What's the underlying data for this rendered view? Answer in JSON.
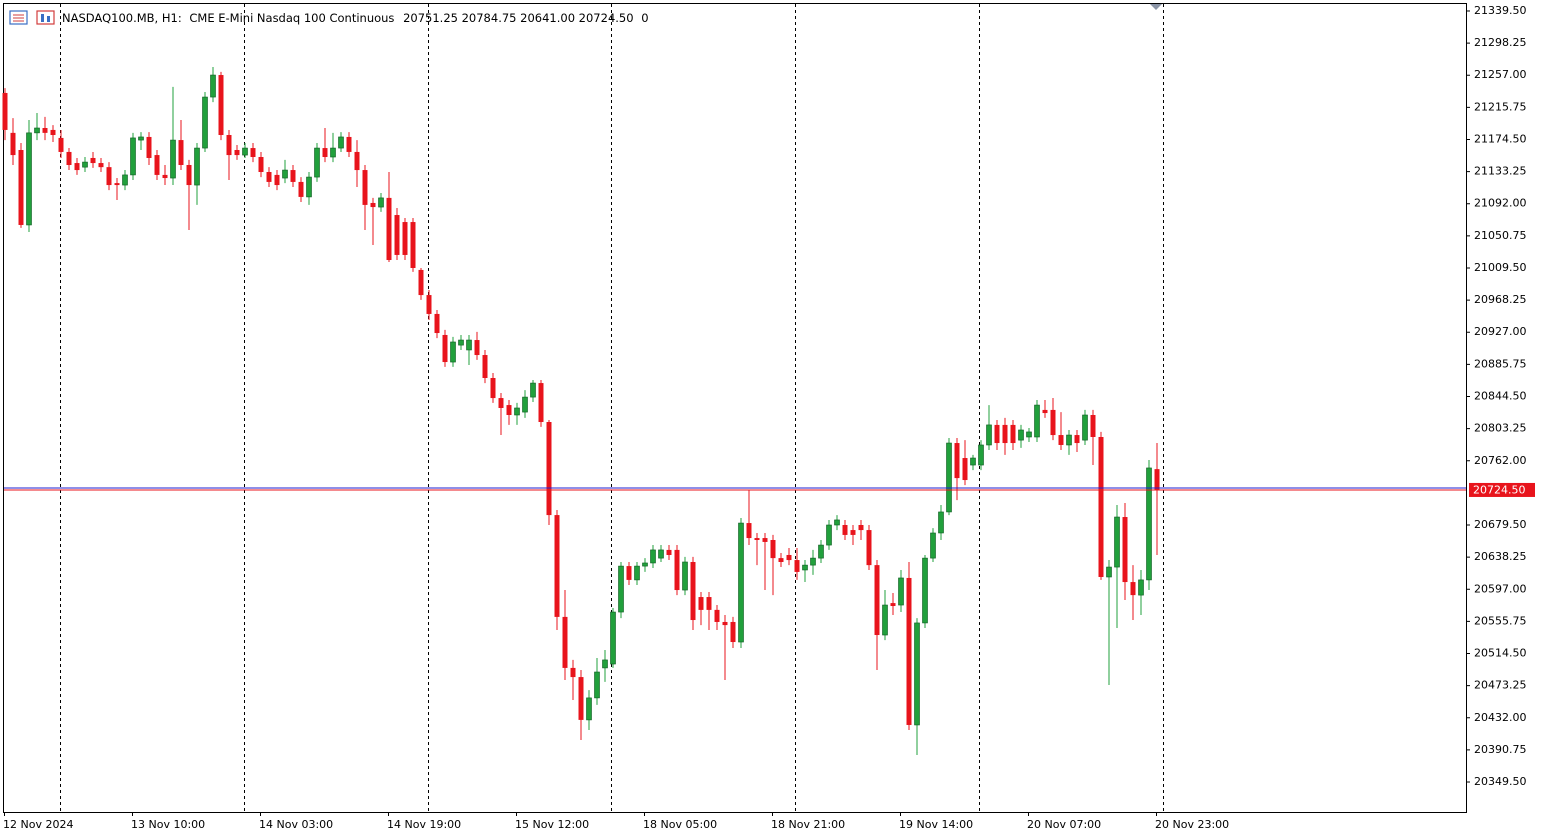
{
  "chart_data": {
    "type": "candlestick",
    "header": {
      "symbol": "NASDAQ100.MB, H1:",
      "description": "CME E-Mini Nasdaq 100 Continuous",
      "prices": [
        "20751.25",
        "20784.75",
        "20641.00",
        "20724.50"
      ],
      "volume": 0
    },
    "categories": [
      "12 Nov 2024",
      null,
      null,
      null,
      null,
      null,
      null,
      null,
      null,
      null,
      null,
      null,
      null,
      null,
      null,
      null,
      "13 Nov 10:00",
      null,
      null,
      null,
      null,
      null,
      null,
      null,
      null,
      null,
      null,
      null,
      null,
      null,
      null,
      null,
      "14 Nov 03:00",
      null,
      null,
      null,
      null,
      null,
      null,
      null,
      null,
      null,
      null,
      null,
      null,
      null,
      null,
      null,
      "14 Nov 19:00",
      null,
      null,
      null,
      null,
      null,
      null,
      null,
      null,
      null,
      null,
      null,
      null,
      null,
      null,
      null,
      "15 Nov 12:00",
      null,
      null,
      null,
      null,
      null,
      null,
      null,
      null,
      null,
      null,
      null,
      null,
      null,
      null,
      null,
      "18 Nov 05:00",
      null,
      null,
      null,
      null,
      null,
      null,
      null,
      null,
      null,
      null,
      null,
      null,
      null,
      null,
      null,
      "18 Nov 21:00",
      null,
      null,
      null,
      null,
      null,
      null,
      null,
      null,
      null,
      null,
      null,
      null,
      null,
      null,
      null,
      "19 Nov 14:00",
      null,
      null,
      null,
      null,
      null,
      null,
      null,
      null,
      null,
      null,
      null,
      null,
      null,
      null,
      null,
      "20 Nov 07:00",
      null,
      null,
      null,
      null,
      null,
      null,
      null,
      null,
      null,
      null,
      null,
      null,
      null,
      null,
      null,
      "20 Nov 23:00"
    ],
    "open": [
      21234.25,
      21183,
      21161,
      21064.75,
      21183,
      21189.25,
      21186.75,
      21176.5,
      21158.5,
      21144.25,
      21139,
      21150.75,
      21144.25,
      21139,
      21118.5,
      21116,
      21129,
      21173.75,
      21177.75,
      21154.5,
      21129,
      21125,
      21173.75,
      21141.75,
      21116,
      21163.5,
      21229,
      21257.25,
      21180.25,
      21161,
      21154.5,
      21163.5,
      21152,
      21132.75,
      21129,
      21125,
      21135.25,
      21120,
      21100.75,
      21126.25,
      21163.5,
      21152,
      21163.5,
      21177.75,
      21158.5,
      21135.25,
      21093,
      21087.75,
      21099.5,
      21077.5,
      21068.5,
      21068.5,
      21007,
      20974.75,
      20950.5,
      20923.5,
      20888.75,
      20910.5,
      20904.25,
      20917,
      20897.75,
      20868.25,
      20842.5,
      20833.5,
      20820.75,
      20824.5,
      20843.75,
      20861.75,
      20811.75,
      20692.25,
      20561.5,
      20496,
      20484.25,
      20429.25,
      20457.5,
      20496,
      20501,
      20567.75,
      20626.75,
      20609,
      20626.75,
      20630.75,
      20637,
      20647.5,
      20647.5,
      20596,
      20632,
      20587,
      20587,
      20570.5,
      20555,
      20555,
      20529.25,
      20682,
      20662.75,
      20662.75,
      20660.25,
      20637,
      20641,
      20634.5,
      20621.75,
      20628,
      20637,
      20653.75,
      20679.5,
      20679.5,
      20673,
      20679.5,
      20673,
      20628,
      20538.25,
      20579.25,
      20576.75,
      20611.5,
      20422.75,
      20553.75,
      20637,
      20669.25,
      20696.25,
      20784.75,
      20765.5,
      20756.5,
      20756.5,
      20782.25,
      20808,
      20808,
      20808,
      20788.5,
      20792.5,
      20792.5,
      20827.25,
      20827.25,
      20795,
      20782.25,
      20795,
      20788.5,
      20820.75,
      20792.5,
      20612.75,
      20625.5,
      20689.75,
      20606.25,
      20589.5,
      20609,
      20751.25
    ],
    "high": [
      21240.5,
      21202,
      21170,
      21199.5,
      21208.5,
      21203.5,
      21193,
      21186.75,
      21163.5,
      21150.75,
      21152,
      21158.5,
      21150.75,
      21145.5,
      21125,
      21135.25,
      21183,
      21184,
      21184,
      21161,
      21141.75,
      21242,
      21199.5,
      21148.25,
      21170,
      21235.5,
      21267.5,
      21261.25,
      21186.75,
      21167.5,
      21170,
      21170,
      21158.5,
      21139,
      21135.25,
      21148.25,
      21141.75,
      21126.25,
      21132.75,
      21170,
      21189.25,
      21183,
      21184,
      21184,
      21173.75,
      21141.75,
      21099.5,
      21105.75,
      21132.75,
      21086.5,
      21073.75,
      21073.75,
      21009.5,
      20981.25,
      20955.5,
      20930,
      20921,
      20923.5,
      20923.5,
      20927.5,
      20904.25,
      20874.75,
      20849,
      20840,
      20836.25,
      20852.75,
      20865.75,
      20865.75,
      20814.25,
      20698.75,
      20596,
      20506.25,
      20493.25,
      20467.5,
      20508.75,
      20519,
      20573,
      20632,
      20632,
      20632,
      20637,
      20653.75,
      20653.75,
      20653.75,
      20653.75,
      20638.5,
      20638.5,
      20593.5,
      20593.5,
      20576.75,
      20564,
      20561.5,
      20688.5,
      20724.5,
      20669.25,
      20669.25,
      20666.75,
      20643.5,
      20650,
      20650,
      20634.5,
      20647.5,
      20660.25,
      20686,
      20692.25,
      20686,
      20679.5,
      20686,
      20679.5,
      20634.5,
      20596,
      20592.25,
      20621.75,
      20632,
      20560,
      20641,
      20675.5,
      20705.25,
      20791.25,
      20791.25,
      20788.5,
      20769.5,
      20788.5,
      20833.5,
      20814.25,
      20817,
      20814.25,
      20808,
      20804,
      20840,
      20840,
      20842.5,
      20824.5,
      20801.5,
      20801.5,
      20827.25,
      20827.25,
      20799,
      20634.5,
      20705.25,
      20707.75,
      20628,
      20621.75,
      20763,
      20784.75
    ],
    "low": [
      21173.75,
      21141.75,
      21061,
      21055.75,
      21173.75,
      21173.75,
      21171.25,
      21150.75,
      21135.25,
      21129,
      21132.75,
      21138,
      21132.75,
      21109.5,
      21096.75,
      21109.5,
      21122.5,
      21161,
      21141.75,
      21122.5,
      21116,
      21116,
      21135.25,
      21058.25,
      21090.5,
      21158.5,
      21222.5,
      21173.75,
      21122.5,
      21148.25,
      21150.75,
      21145.5,
      21126.25,
      21113.5,
      21109.5,
      21118.5,
      21113.5,
      21094.25,
      21090.5,
      21120,
      21145.5,
      21145.5,
      21158.5,
      21152,
      21113.5,
      21058.25,
      21039,
      21081.5,
      21017.25,
      21019.75,
      21019.75,
      21004.5,
      20968.5,
      20942.75,
      20919.5,
      20882.5,
      20882.5,
      20904.25,
      20885,
      20891.5,
      20861.75,
      20836.25,
      20795,
      20808,
      20808,
      20817,
      20837.5,
      20805.5,
      20679.5,
      20544.75,
      20480.5,
      20454.75,
      20403.5,
      20416.25,
      20448.5,
      20478,
      20496,
      20560,
      20602.5,
      20602.5,
      20619.25,
      20624.25,
      20632,
      20634.5,
      20589.5,
      20589.5,
      20544.75,
      20551,
      20544.75,
      20544.75,
      20480.5,
      20521.5,
      20521.5,
      20653.75,
      20628,
      20596,
      20589.5,
      20625.5,
      20628,
      20609,
      20606.25,
      20615.5,
      20630.75,
      20647.5,
      20673,
      20660.25,
      20653.75,
      20660.25,
      20621.75,
      20493.25,
      20531.75,
      20564,
      20567.75,
      20416.25,
      20384.25,
      20547.25,
      20632,
      20660.25,
      20692.25,
      20711.5,
      20730.75,
      20750,
      20750,
      20775.75,
      20775.75,
      20769.5,
      20775.75,
      20778.5,
      20786,
      20786,
      20817,
      20788.5,
      20775.75,
      20769.5,
      20773.25,
      20782.25,
      20756.5,
      20609,
      20474,
      20547.25,
      20583.25,
      20557.5,
      20564,
      20596,
      20641
    ],
    "close": [
      21186.75,
      21154.5,
      21064.75,
      21183,
      21189.25,
      21183,
      21180.25,
      21158.5,
      21141.75,
      21135.25,
      21145.5,
      21144.25,
      21139,
      21116,
      21116,
      21129,
      21176.5,
      21177.75,
      21150.75,
      21129,
      21125,
      21173.75,
      21141.75,
      21116,
      21163.5,
      21229,
      21257.25,
      21180.25,
      21154.5,
      21154.5,
      21163.5,
      21152,
      21132.75,
      21120,
      21116,
      21135.25,
      21120,
      21100.75,
      21126.25,
      21163.5,
      21152,
      21163.5,
      21177.75,
      21158.5,
      21135.25,
      21090.5,
      21087.75,
      21099.5,
      21019.75,
      21026.25,
      21026.25,
      21009.5,
      20974.75,
      20950.5,
      20926,
      20888.75,
      20914.5,
      20917,
      20917,
      20897.75,
      20868.25,
      20842.5,
      20829.75,
      20820.75,
      20829.75,
      20843.75,
      20861.75,
      20811.75,
      20692.25,
      20561.5,
      20496,
      20484.25,
      20429.25,
      20457.5,
      20490.75,
      20506.25,
      20567.75,
      20626.75,
      20609,
      20626.75,
      20630.75,
      20647.5,
      20647.5,
      20641,
      20596,
      20632,
      20557.5,
      20570.5,
      20570.5,
      20555,
      20551,
      20529.25,
      20682,
      20662.75,
      20660.25,
      20657.75,
      20637,
      20632,
      20634.5,
      20619.25,
      20628,
      20637,
      20653.75,
      20679.5,
      20686,
      20666.75,
      20666.75,
      20673,
      20628,
      20538.25,
      20576.75,
      20575.5,
      20611.5,
      20422.75,
      20553.75,
      20637,
      20669.25,
      20696.25,
      20784.75,
      20739.75,
      20737.25,
      20765.5,
      20782.25,
      20808,
      20784.75,
      20784.75,
      20784.75,
      20801.5,
      20799,
      20833.5,
      20823.25,
      20795,
      20782.25,
      20795,
      20784.75,
      20820.75,
      20792.5,
      20612.75,
      20625.5,
      20689.75,
      20606.25,
      20589.5,
      20609,
      20752.75,
      20724.5
    ],
    "up_color": "#21a03c",
    "down_color": "#e8141c",
    "ylim": [
      20311,
      21349.75
    ],
    "yticks": [
      {
        "value": 21339.5,
        "label": "21339.50"
      },
      {
        "value": 21298.25,
        "label": "21298.25"
      },
      {
        "value": 21257,
        "label": "21257.00"
      },
      {
        "value": 21215.75,
        "label": "21215.75"
      },
      {
        "value": 21174.5,
        "label": "21174.50"
      },
      {
        "value": 21133.25,
        "label": "21133.25"
      },
      {
        "value": 21092,
        "label": "21092.00"
      },
      {
        "value": 21050.75,
        "label": "21050.75"
      },
      {
        "value": 21009.5,
        "label": "21009.50"
      },
      {
        "value": 20968.25,
        "label": "20968.25"
      },
      {
        "value": 20927,
        "label": "20927.00"
      },
      {
        "value": 20885.75,
        "label": "20885.75"
      },
      {
        "value": 20844.5,
        "label": "20844.50"
      },
      {
        "value": 20803.25,
        "label": "20803.25"
      },
      {
        "value": 20762,
        "label": "20762.00"
      },
      {
        "value": 20679.5,
        "label": "20679.50"
      },
      {
        "value": 20638.25,
        "label": "20638.25"
      },
      {
        "value": 20597,
        "label": "20597.00"
      },
      {
        "value": 20555.75,
        "label": "20555.75"
      },
      {
        "value": 20514.5,
        "label": "20514.50"
      },
      {
        "value": 20473.25,
        "label": "20473.25"
      },
      {
        "value": 20432,
        "label": "20432.00"
      },
      {
        "value": 20390.75,
        "label": "20390.75"
      },
      {
        "value": 20349.5,
        "label": "20349.50"
      }
    ],
    "current_price": {
      "value": 20724.5,
      "label": "20724.50"
    },
    "grid": false
  }
}
